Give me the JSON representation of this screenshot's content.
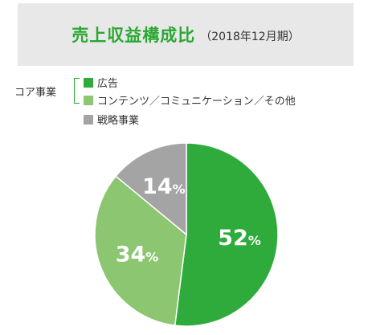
{
  "header": {
    "title": "売上収益構成比",
    "subtitle": "（2018年12月期）"
  },
  "legend": {
    "group_label": "コア事業",
    "items": [
      {
        "label": "広告",
        "color": "#2eab3a"
      },
      {
        "label": "コンテンツ／コミュニケーション／その他",
        "color": "#8cc671"
      },
      {
        "label": "戦略事業",
        "color": "#a4a4a4"
      }
    ]
  },
  "chart_data": {
    "type": "pie",
    "title": "売上収益構成比",
    "subtitle": "（2018年12月期）",
    "categories": [
      "広告",
      "コンテンツ／コミュニケーション／その他",
      "戦略事業"
    ],
    "values": [
      52,
      34,
      14
    ],
    "unit": "%",
    "colors": [
      "#2eab3a",
      "#8cc671",
      "#a4a4a4"
    ],
    "data_labels": [
      {
        "num": "52",
        "unit": "%"
      },
      {
        "num": "34",
        "unit": "%"
      },
      {
        "num": "14",
        "unit": "%"
      }
    ],
    "legend_placement": "top-left"
  }
}
